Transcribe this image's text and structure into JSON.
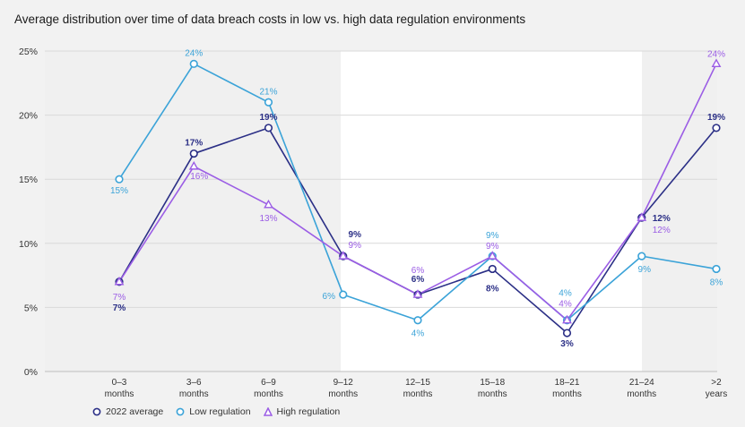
{
  "title": "Average distribution over time of data breach costs in low vs. high data regulation environments",
  "chart_data": {
    "type": "line",
    "title": "Average distribution over time of data breach costs in low vs. high data regulation environments",
    "xlabel": "",
    "ylabel": "",
    "categories": [
      [
        "0–3",
        "months"
      ],
      [
        "3–6",
        "months"
      ],
      [
        "6–9",
        "months"
      ],
      [
        "9–12",
        "months"
      ],
      [
        "12–15",
        "months"
      ],
      [
        "15–18",
        "months"
      ],
      [
        "18–21",
        "months"
      ],
      [
        "21–24",
        "months"
      ],
      [
        ">2",
        "years"
      ]
    ],
    "ylim": [
      0,
      25
    ],
    "yticks": [
      0,
      5,
      10,
      15,
      20,
      25
    ],
    "ytick_labels": [
      "0%",
      "5%",
      "10%",
      "15%",
      "20%",
      "25%"
    ],
    "grid": "horizontal",
    "legend_position": "bottom-left",
    "series": [
      {
        "name": "2022 average",
        "marker": "circle",
        "color": "#2b2f86",
        "values": [
          7,
          17,
          19,
          9,
          6,
          8,
          3,
          12,
          19
        ],
        "labels": [
          "7%",
          "17%",
          "19%",
          "9%",
          "6%",
          "8%",
          "3%",
          "12%",
          "19%"
        ]
      },
      {
        "name": "Low regulation",
        "marker": "circle",
        "color": "#3ba3d8",
        "values": [
          15,
          24,
          21,
          6,
          4,
          9,
          4,
          9,
          8
        ],
        "labels": [
          "15%",
          "24%",
          "21%",
          "6%",
          "4%",
          "9%",
          "4%",
          "9%",
          "8%"
        ]
      },
      {
        "name": "High regulation",
        "marker": "triangle",
        "color": "#9b5de5",
        "values": [
          7,
          16,
          13,
          9,
          6,
          9,
          4,
          12,
          24
        ],
        "labels": [
          "7%",
          "16%",
          "13%",
          "9%",
          "6%",
          "9%",
          "4%",
          "12%",
          "24%"
        ]
      }
    ]
  }
}
